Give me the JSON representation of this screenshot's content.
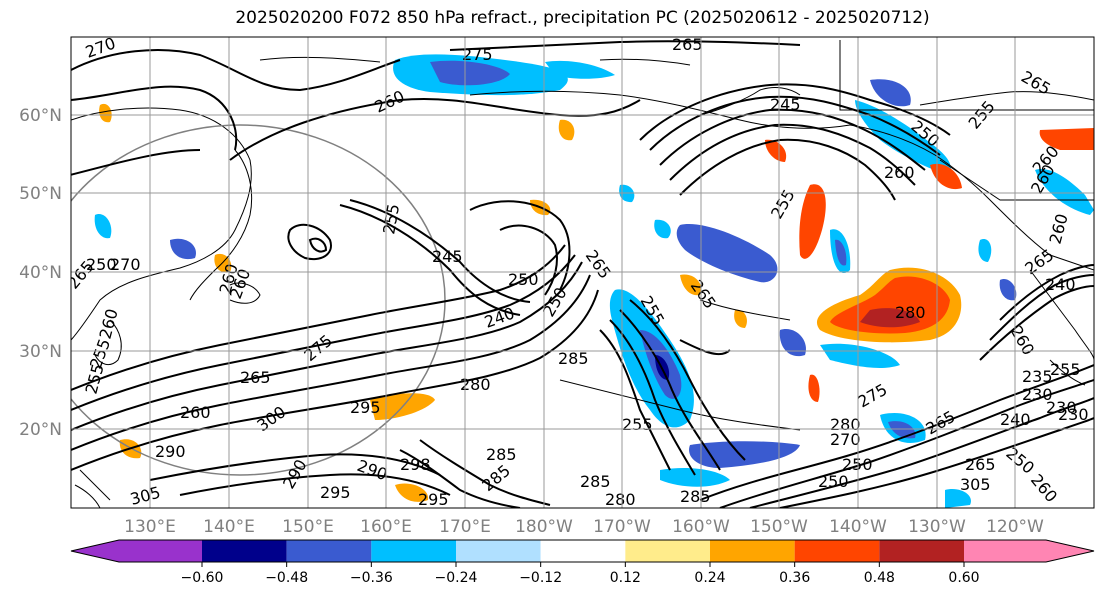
{
  "title": "2025020200 F072 850 hPa refract., precipitation PC (2025020612 - 2025020712)",
  "lat_labels": [
    "60°N",
    "50°N",
    "40°N",
    "30°N",
    "20°N"
  ],
  "lon_labels": [
    "130°E",
    "140°E",
    "150°E",
    "160°E",
    "170°E",
    "180°W",
    "170°W",
    "160°W",
    "150°W",
    "140°W",
    "130°W",
    "120°W"
  ],
  "contour_labels": [
    "270",
    "275",
    "265",
    "265",
    "260",
    "245",
    "250",
    "255",
    "260",
    "260",
    "255",
    "250",
    "270",
    "265",
    "260",
    "255",
    "260",
    "255",
    "245",
    "250",
    "265",
    "240",
    "250",
    "255",
    "285",
    "280",
    "290",
    "295",
    "265",
    "275",
    "260",
    "300",
    "290",
    "295",
    "290",
    "298",
    "285",
    "285",
    "280",
    "285",
    "295",
    "305",
    "285",
    "280",
    "270",
    "265",
    "275",
    "255",
    "280",
    "260",
    "250",
    "265",
    "235",
    "230",
    "240",
    "250",
    "260",
    "265",
    "305",
    "260",
    "260",
    "265",
    "260",
    "255",
    "230",
    "240",
    "230",
    "255",
    "250"
  ],
  "colorbar": {
    "ticks": [
      "−0.60",
      "−0.48",
      "−0.36",
      "−0.24",
      "−0.12",
      "0.12",
      "0.24",
      "0.36",
      "0.48",
      "0.60"
    ],
    "colors": [
      "#9932cc",
      "#00008b",
      "#3a5bd0",
      "#00bfff",
      "#b0e0ff",
      "#ffffff",
      "#ffec8b",
      "#ffa500",
      "#ff4500",
      "#b22222",
      "#ff85b3"
    ]
  }
}
